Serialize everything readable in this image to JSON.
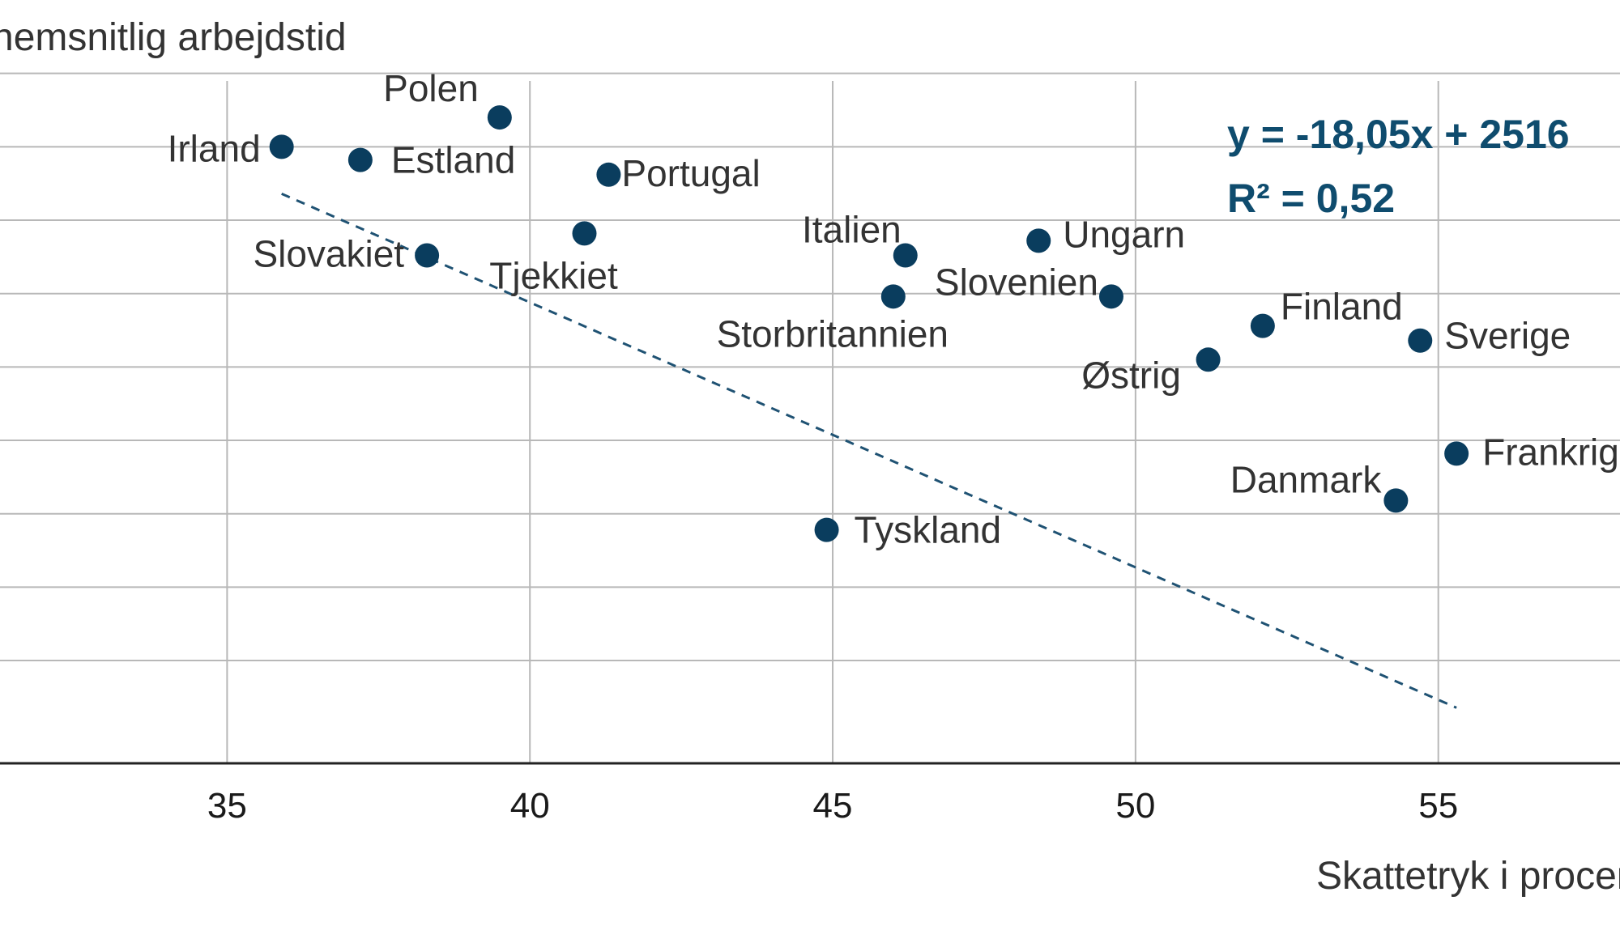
{
  "chart_data": {
    "type": "scatter",
    "ylabel": "nemsnitlig arbejdstid",
    "xlabel": "Skattetryk i procent",
    "xlim": [
      31.25,
      58.0
    ],
    "ylim": [
      1480,
      2000
    ],
    "x_ticks": [
      35,
      40,
      45,
      50,
      55
    ],
    "y_gridlines": [
      1550,
      1600,
      1650,
      1700,
      1750,
      1800,
      1850,
      1900,
      1950
    ],
    "grid": true,
    "legend": "none",
    "colors": {
      "point": "#0a3d5e",
      "trendline": "#1f5273",
      "equation": "#0f4c6e",
      "grid": "#b8b8b8",
      "axis": "#222222"
    },
    "points": [
      {
        "name": "Irland",
        "x": 35.9,
        "y": 1900
      },
      {
        "name": "Estland",
        "x": 37.2,
        "y": 1891
      },
      {
        "name": "Polen",
        "x": 39.5,
        "y": 1920
      },
      {
        "name": "Slovakiet",
        "x": 38.3,
        "y": 1826
      },
      {
        "name": "Portugal",
        "x": 41.3,
        "y": 1881
      },
      {
        "name": "Tjekkiet",
        "x": 40.9,
        "y": 1841
      },
      {
        "name": "Italien",
        "x": 46.2,
        "y": 1826
      },
      {
        "name": "Storbritannien",
        "x": 46.0,
        "y": 1798
      },
      {
        "name": "Ungarn",
        "x": 48.4,
        "y": 1836
      },
      {
        "name": "Slovenien",
        "x": 49.6,
        "y": 1798
      },
      {
        "name": "Østrig",
        "x": 51.2,
        "y": 1755
      },
      {
        "name": "Finland",
        "x": 52.1,
        "y": 1778
      },
      {
        "name": "Sverige",
        "x": 54.7,
        "y": 1768
      },
      {
        "name": "Frankrig",
        "x": 55.3,
        "y": 1691
      },
      {
        "name": "Danmark",
        "x": 54.3,
        "y": 1659
      },
      {
        "name": "Tyskland",
        "x": 44.9,
        "y": 1639
      }
    ],
    "trendline": {
      "x": [
        35.9,
        55.3
      ],
      "slope": -18.05,
      "intercept": 2516
    },
    "annotations": [
      "y = -18,05x + 2516",
      "R² = 0,52"
    ]
  }
}
